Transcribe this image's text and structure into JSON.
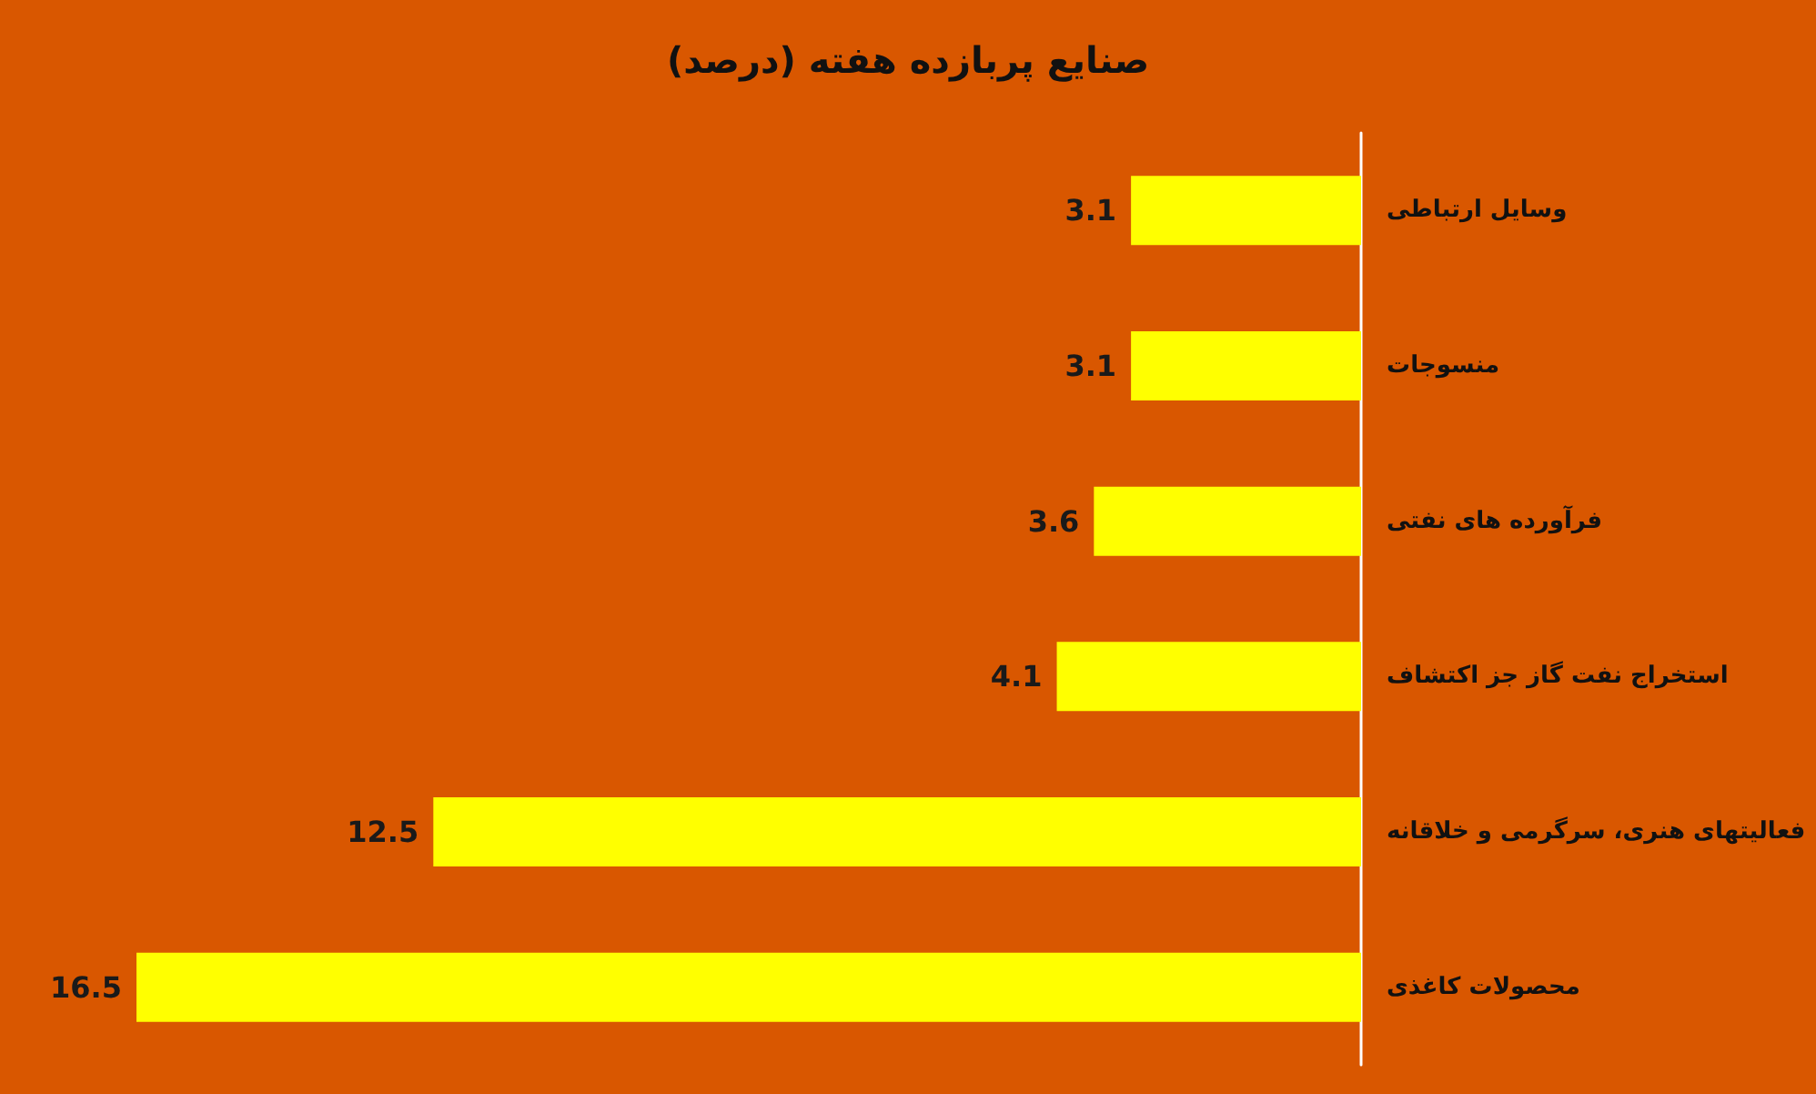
{
  "chart_data": {
    "type": "bar",
    "orientation": "horizontal",
    "title": "صنایع پربازده هفته (درصد)",
    "categories": [
      "وسایل ارتباطی",
      "منسوجات",
      "فرآورده های نفتی",
      "استخراج نفت گاز جز اکتشاف",
      "فعالیتهای هنری، سرگرمی و خلاقانه",
      "محصولات کاغذی"
    ],
    "values": [
      3.1,
      3.1,
      3.6,
      4.1,
      12.5,
      16.5
    ],
    "color": "#ffff00",
    "data_labels": true
  }
}
